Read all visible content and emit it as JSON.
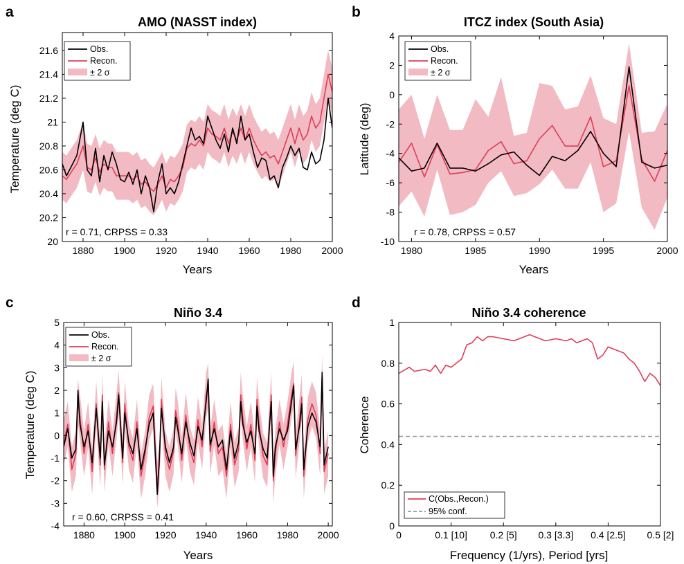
{
  "colors": {
    "obs": "#000000",
    "recon": "#e03c55",
    "band": "#f2bac3",
    "conf": "#999999"
  },
  "panels": [
    {
      "letter": "a",
      "title": "AMO (NASST index)",
      "stat_text": "r = 0.71, CRPSS = 0.33",
      "legend": [
        "Obs.",
        "Recon.",
        "± 2 σ"
      ]
    },
    {
      "letter": "b",
      "title": "ITCZ index (South Asia)",
      "stat_text": "r = 0.78, CRPSS = 0.57",
      "legend": [
        "Obs.",
        "Recon.",
        "± 2 σ"
      ]
    },
    {
      "letter": "c",
      "title": "Niño 3.4",
      "stat_text": "r = 0.60, CRPSS = 0.41",
      "legend": [
        "Obs.",
        "Recon.",
        "± 2 σ"
      ]
    },
    {
      "letter": "d",
      "title": "Niño 3.4 coherence",
      "stat_text": "",
      "legend": [
        "C(Obs.,Recon.)",
        "95% conf."
      ]
    }
  ],
  "chart_data": [
    {
      "type": "line",
      "title": "AMO (NASST index)",
      "xlabel": "Years",
      "ylabel": "Temperature (deg C)",
      "xlim": [
        1870,
        2000
      ],
      "ylim": [
        20,
        21.75
      ],
      "xticks": [
        1880,
        1900,
        1920,
        1940,
        1960,
        1980,
        2000
      ],
      "xtick_labels": [
        "1880",
        "1900",
        "1920",
        "1940",
        "1960",
        "1980",
        "2000"
      ],
      "yticks": [
        20,
        20.2,
        20.4,
        20.6,
        20.8,
        21,
        21.2,
        21.4,
        21.6
      ],
      "ytick_labels": [
        "20",
        "20.2",
        "20.4",
        "20.6",
        "20.8",
        "21",
        "21.2",
        "21.4",
        "21.6"
      ],
      "band_halfwidth": 0.2,
      "band_series": "Recon.",
      "series": [
        {
          "name": "Obs.",
          "x": [
            1870,
            1872,
            1875,
            1877,
            1880,
            1882,
            1884,
            1886,
            1888,
            1890,
            1892,
            1894,
            1896,
            1898,
            1900,
            1902,
            1904,
            1906,
            1908,
            1910,
            1912,
            1914,
            1916,
            1918,
            1920,
            1922,
            1924,
            1926,
            1928,
            1930,
            1932,
            1934,
            1936,
            1938,
            1940,
            1942,
            1944,
            1946,
            1948,
            1950,
            1952,
            1954,
            1956,
            1958,
            1960,
            1962,
            1964,
            1966,
            1968,
            1970,
            1972,
            1974,
            1976,
            1978,
            1980,
            1982,
            1984,
            1986,
            1988,
            1990,
            1992,
            1994,
            1996,
            1998,
            2000
          ],
          "y": [
            20.65,
            20.55,
            20.65,
            20.72,
            21.0,
            20.6,
            20.55,
            20.78,
            20.5,
            20.72,
            20.6,
            20.75,
            20.65,
            20.52,
            20.5,
            20.58,
            20.48,
            20.6,
            20.4,
            20.55,
            20.45,
            20.25,
            20.5,
            20.65,
            20.4,
            20.45,
            20.4,
            20.5,
            20.65,
            20.8,
            20.95,
            20.85,
            20.88,
            20.82,
            21.05,
            20.95,
            20.85,
            20.78,
            20.9,
            20.75,
            20.95,
            20.82,
            21.05,
            20.85,
            20.9,
            20.75,
            20.62,
            20.7,
            20.68,
            20.52,
            20.55,
            20.45,
            20.62,
            20.7,
            20.8,
            20.72,
            20.78,
            20.62,
            20.6,
            20.75,
            20.65,
            20.68,
            20.85,
            21.2,
            20.95
          ]
        },
        {
          "name": "Recon.",
          "x": [
            1870,
            1872,
            1875,
            1877,
            1880,
            1882,
            1884,
            1886,
            1888,
            1890,
            1892,
            1894,
            1896,
            1898,
            1900,
            1902,
            1904,
            1906,
            1908,
            1910,
            1912,
            1914,
            1916,
            1918,
            1920,
            1922,
            1924,
            1926,
            1928,
            1930,
            1932,
            1934,
            1936,
            1938,
            1940,
            1942,
            1944,
            1946,
            1948,
            1950,
            1952,
            1954,
            1956,
            1958,
            1960,
            1962,
            1964,
            1966,
            1968,
            1970,
            1972,
            1974,
            1976,
            1978,
            1980,
            1982,
            1984,
            1986,
            1988,
            1990,
            1992,
            1994,
            1996,
            1998,
            2000
          ],
          "y": [
            20.55,
            20.52,
            20.6,
            20.65,
            20.8,
            20.62,
            20.6,
            20.7,
            20.58,
            20.65,
            20.62,
            20.62,
            20.55,
            20.55,
            20.55,
            20.55,
            20.52,
            20.55,
            20.48,
            20.5,
            20.45,
            20.42,
            20.48,
            20.55,
            20.45,
            20.52,
            20.5,
            20.55,
            20.62,
            20.78,
            20.82,
            20.8,
            20.85,
            20.8,
            20.95,
            20.9,
            20.88,
            20.85,
            20.95,
            20.82,
            20.92,
            20.85,
            20.95,
            20.85,
            20.95,
            20.85,
            20.78,
            20.72,
            20.75,
            20.7,
            20.72,
            20.65,
            20.75,
            20.85,
            20.95,
            20.82,
            20.95,
            20.85,
            20.9,
            21.05,
            20.95,
            21.0,
            21.2,
            21.4,
            21.25
          ]
        }
      ]
    },
    {
      "type": "line",
      "title": "ITCZ index (South Asia)",
      "xlabel": "Years",
      "ylabel": "Latitude (deg)",
      "xlim": [
        1979,
        2000
      ],
      "ylim": [
        -10,
        4
      ],
      "xticks": [
        1980,
        1985,
        1990,
        1995,
        2000
      ],
      "xtick_labels": [
        "1980",
        "1985",
        "1990",
        "1995",
        "2000"
      ],
      "yticks": [
        -10,
        -8,
        -6,
        -4,
        -2,
        0,
        2,
        4
      ],
      "ytick_labels": [
        "-10",
        "-8",
        "-6",
        "-4",
        "-2",
        "0",
        "2",
        "4"
      ],
      "band_series": "Recon.",
      "band_lower": [
        -7.6,
        -6.6,
        -8.3,
        -5.1,
        -8.2,
        -8.0,
        -7.5,
        -6.0,
        -5.2,
        -6.9,
        -6.7,
        -6.1,
        -5.1,
        -6.4,
        -6.4,
        -4.6,
        -8.0,
        -7.4,
        -2.5,
        -7.7,
        -9.2,
        -7.0
      ],
      "band_upper": [
        -1.0,
        0.0,
        -3.0,
        0.0,
        -2.4,
        -2.4,
        -0.3,
        -1.5,
        1.2,
        -2.8,
        -2.6,
        0.8,
        0.6,
        -1.0,
        -0.8,
        1.3,
        -1.6,
        -2.0,
        3.5,
        -2.6,
        -2.5,
        -0.6
      ],
      "series": [
        {
          "name": "Obs.",
          "x": [
            1979,
            1980,
            1981,
            1982,
            1983,
            1984,
            1985,
            1986,
            1987,
            1988,
            1989,
            1990,
            1991,
            1992,
            1993,
            1994,
            1995,
            1996,
            1997,
            1998,
            1999,
            2000
          ],
          "y": [
            -4.3,
            -5.2,
            -5.0,
            -3.3,
            -5.0,
            -5.0,
            -5.2,
            -4.7,
            -4.1,
            -3.9,
            -4.8,
            -5.5,
            -4.2,
            -4.5,
            -3.8,
            -2.5,
            -4.0,
            -4.9,
            1.9,
            -4.6,
            -5.0,
            -4.8
          ]
        },
        {
          "name": "Recon.",
          "x": [
            1979,
            1980,
            1981,
            1982,
            1983,
            1984,
            1985,
            1986,
            1987,
            1988,
            1989,
            1990,
            1991,
            1992,
            1993,
            1994,
            1995,
            1996,
            1997,
            1998,
            1999,
            2000
          ],
          "y": [
            -4.6,
            -3.3,
            -5.6,
            -3.4,
            -5.4,
            -5.3,
            -5.1,
            -3.8,
            -3.2,
            -4.7,
            -4.5,
            -3.0,
            -2.1,
            -3.5,
            -3.5,
            -1.5,
            -4.9,
            -4.5,
            0.6,
            -4.4,
            -5.9,
            -3.8
          ]
        }
      ]
    },
    {
      "type": "line",
      "title": "Niño 3.4",
      "xlabel": "Years",
      "ylabel": "Temperature (deg C)",
      "xlim": [
        1870,
        2002
      ],
      "ylim": [
        -4,
        5
      ],
      "xticks": [
        1880,
        1900,
        1920,
        1940,
        1960,
        1980,
        2000
      ],
      "xtick_labels": [
        "1880",
        "1900",
        "1920",
        "1940",
        "1960",
        "1980",
        "2000"
      ],
      "yticks": [
        -4,
        -3,
        -2,
        -1,
        0,
        1,
        2,
        3,
        4,
        5
      ],
      "ytick_labels": [
        "-4",
        "-3",
        "-2",
        "-1",
        "0",
        "1",
        "2",
        "3",
        "4",
        "5"
      ],
      "band_halfwidth": 1.0,
      "band_series": "Recon.",
      "series": [
        {
          "name": "Obs.",
          "x": [
            1870,
            1872,
            1874,
            1876,
            1877,
            1878,
            1880,
            1882,
            1884,
            1886,
            1888,
            1889,
            1890,
            1892,
            1894,
            1896,
            1897,
            1899,
            1900,
            1902,
            1904,
            1906,
            1908,
            1910,
            1912,
            1914,
            1916,
            1917,
            1918,
            1920,
            1922,
            1924,
            1925,
            1926,
            1928,
            1930,
            1932,
            1934,
            1936,
            1938,
            1940,
            1941,
            1942,
            1944,
            1946,
            1948,
            1950,
            1952,
            1954,
            1956,
            1957,
            1958,
            1960,
            1962,
            1964,
            1965,
            1966,
            1968,
            1970,
            1972,
            1973,
            1974,
            1976,
            1978,
            1980,
            1982,
            1983,
            1984,
            1986,
            1987,
            1988,
            1990,
            1992,
            1994,
            1996,
            1997,
            1998,
            2000
          ],
          "y": [
            -0.5,
            0.3,
            -1.0,
            -0.6,
            2.0,
            0.5,
            -0.5,
            0.2,
            -1.2,
            1.2,
            -1.0,
            1.5,
            -1.3,
            0.2,
            -0.5,
            0.6,
            1.8,
            -1.0,
            1.0,
            -0.3,
            -0.8,
            0.3,
            -1.5,
            -0.6,
            0.5,
            1.0,
            -2.6,
            -1.0,
            1.2,
            -0.5,
            -1.2,
            -0.5,
            0.8,
            0.3,
            -0.8,
            0.6,
            -0.3,
            -0.9,
            0.4,
            -0.2,
            1.5,
            2.5,
            -0.4,
            0.3,
            -0.5,
            -0.2,
            -1.5,
            0.2,
            -1.0,
            -0.3,
            1.5,
            0.5,
            -0.3,
            0.2,
            -0.8,
            1.3,
            0.2,
            -0.6,
            -1.0,
            1.5,
            -1.8,
            -0.5,
            0.3,
            -0.2,
            0.2,
            1.5,
            2.2,
            -0.6,
            0.5,
            1.4,
            -1.5,
            0.4,
            1.0,
            0.6,
            -0.5,
            2.8,
            -1.3,
            -0.5
          ]
        },
        {
          "name": "Recon.",
          "x": [
            1870,
            1872,
            1874,
            1876,
            1877,
            1878,
            1880,
            1882,
            1884,
            1886,
            1888,
            1889,
            1890,
            1892,
            1894,
            1896,
            1897,
            1899,
            1900,
            1902,
            1904,
            1906,
            1908,
            1910,
            1912,
            1914,
            1916,
            1917,
            1918,
            1920,
            1922,
            1924,
            1925,
            1926,
            1928,
            1930,
            1932,
            1934,
            1936,
            1938,
            1940,
            1941,
            1942,
            1944,
            1946,
            1948,
            1950,
            1952,
            1954,
            1956,
            1957,
            1958,
            1960,
            1962,
            1964,
            1965,
            1966,
            1968,
            1970,
            1972,
            1973,
            1974,
            1976,
            1978,
            1980,
            1982,
            1983,
            1984,
            1986,
            1987,
            1988,
            1990,
            1992,
            1994,
            1996,
            1997,
            1998,
            2000
          ],
          "y": [
            -0.3,
            0.5,
            -1.5,
            -0.8,
            1.5,
            0.8,
            -0.8,
            0.5,
            -1.6,
            1.4,
            -1.3,
            1.8,
            -1.5,
            0.6,
            -0.8,
            0.9,
            1.9,
            -1.2,
            1.4,
            -0.5,
            -1.1,
            0.6,
            -1.8,
            -0.8,
            0.8,
            1.3,
            -2.2,
            -1.3,
            1.6,
            -0.8,
            -1.5,
            -0.7,
            1.1,
            0.6,
            -1.1,
            0.9,
            -0.6,
            -1.2,
            0.7,
            -0.5,
            1.8,
            2.2,
            -0.7,
            0.6,
            -0.8,
            -0.5,
            -1.8,
            0.5,
            -1.3,
            -0.6,
            1.8,
            0.8,
            -0.6,
            0.5,
            -1.1,
            1.6,
            0.5,
            -0.9,
            -1.3,
            1.8,
            -2.0,
            -0.8,
            0.6,
            -0.5,
            0.5,
            1.8,
            2.3,
            -0.9,
            0.8,
            1.7,
            -1.8,
            0.7,
            1.4,
            0.9,
            -0.8,
            2.6,
            -1.6,
            -0.8
          ]
        }
      ]
    },
    {
      "type": "line",
      "title": "Niño 3.4 coherence",
      "xlabel": "Frequency (1/yrs), Period [yrs]",
      "ylabel": "Coherence",
      "xlim": [
        0,
        0.5
      ],
      "ylim": [
        0,
        1
      ],
      "xticks": [
        0,
        0.1,
        0.2,
        0.3,
        0.4,
        0.5
      ],
      "xtick_labels": [
        "0",
        "0.1 [10]",
        "0.2 [5]",
        "0.3 [3.3]",
        "0.4 [2.5]",
        "0.5 [2]"
      ],
      "yticks": [
        0,
        0.2,
        0.4,
        0.6,
        0.8,
        1
      ],
      "ytick_labels": [
        "0",
        "0.2",
        "0.4",
        "0.6",
        "0.8",
        "1"
      ],
      "series": [
        {
          "name": "C(Obs.,Recon.)",
          "x": [
            0.0,
            0.02,
            0.03,
            0.05,
            0.06,
            0.07,
            0.08,
            0.09,
            0.1,
            0.11,
            0.12,
            0.13,
            0.14,
            0.15,
            0.16,
            0.17,
            0.18,
            0.2,
            0.22,
            0.24,
            0.25,
            0.26,
            0.28,
            0.3,
            0.32,
            0.33,
            0.34,
            0.36,
            0.37,
            0.38,
            0.39,
            0.4,
            0.41,
            0.42,
            0.43,
            0.44,
            0.45,
            0.46,
            0.47,
            0.48,
            0.49,
            0.5
          ],
          "y": [
            0.75,
            0.78,
            0.76,
            0.77,
            0.76,
            0.79,
            0.75,
            0.79,
            0.78,
            0.8,
            0.82,
            0.89,
            0.9,
            0.93,
            0.91,
            0.93,
            0.93,
            0.92,
            0.91,
            0.93,
            0.94,
            0.93,
            0.91,
            0.92,
            0.91,
            0.92,
            0.9,
            0.92,
            0.9,
            0.82,
            0.84,
            0.88,
            0.87,
            0.86,
            0.85,
            0.82,
            0.8,
            0.76,
            0.71,
            0.75,
            0.73,
            0.69
          ]
        },
        {
          "name": "95% conf.",
          "x": [
            0,
            0.5
          ],
          "y": [
            0.44,
            0.44
          ]
        }
      ]
    }
  ]
}
